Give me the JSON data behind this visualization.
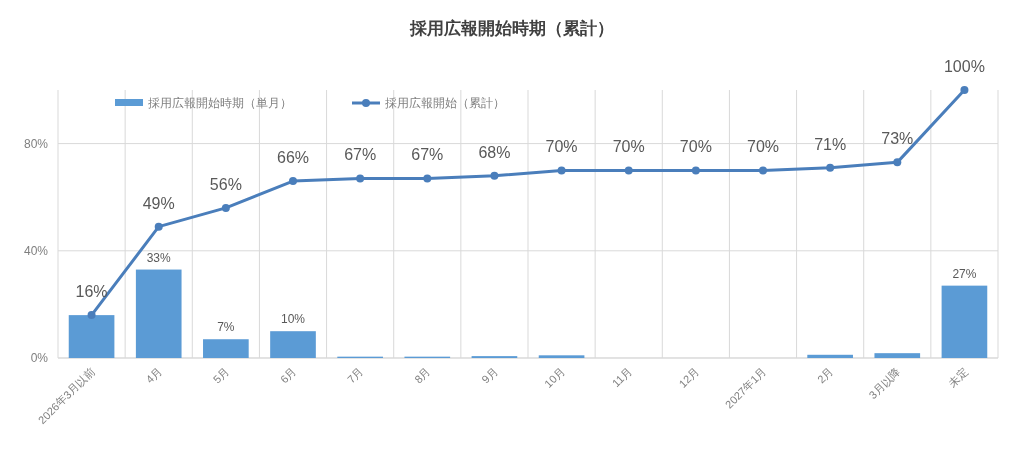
{
  "chart_data": {
    "type": "bar",
    "title": "採用広報開始時期（累計）",
    "categories": [
      "2026年3月以前",
      "4月",
      "5月",
      "6月",
      "7月",
      "8月",
      "9月",
      "10月",
      "11月",
      "12月",
      "2027年1月",
      "2月",
      "3月以降",
      "未定"
    ],
    "series": [
      {
        "name": "採用広報開始時期（単月）",
        "color": "#5b9bd5",
        "values": [
          16,
          33,
          7,
          10,
          0.5,
          0.5,
          0.7,
          1,
          0,
          0,
          0,
          1.2,
          1.8,
          27
        ],
        "value_labels": [
          null,
          "33%",
          "7%",
          "10%",
          null,
          null,
          null,
          null,
          null,
          null,
          null,
          null,
          null,
          "27%"
        ]
      },
      {
        "name": "採用広報開始（累計）",
        "type": "line",
        "color": "#4a7ebb",
        "values": [
          16,
          49,
          56,
          66,
          67,
          67,
          68,
          70,
          70,
          70,
          70,
          71,
          73,
          100
        ],
        "value_labels": [
          "16%",
          "49%",
          "56%",
          "66%",
          "67%",
          "67%",
          "68%",
          "70%",
          "70%",
          "70%",
          "70%",
          "71%",
          "73%",
          "100%"
        ]
      }
    ],
    "ylim": [
      0,
      100
    ],
    "yticks": [
      {
        "value": 0,
        "label": "0%"
      },
      {
        "value": 40,
        "label": "40%"
      },
      {
        "value": 80,
        "label": "80%"
      }
    ],
    "grid": true,
    "legend": "top",
    "marker": "circle",
    "line_style": "solid"
  }
}
